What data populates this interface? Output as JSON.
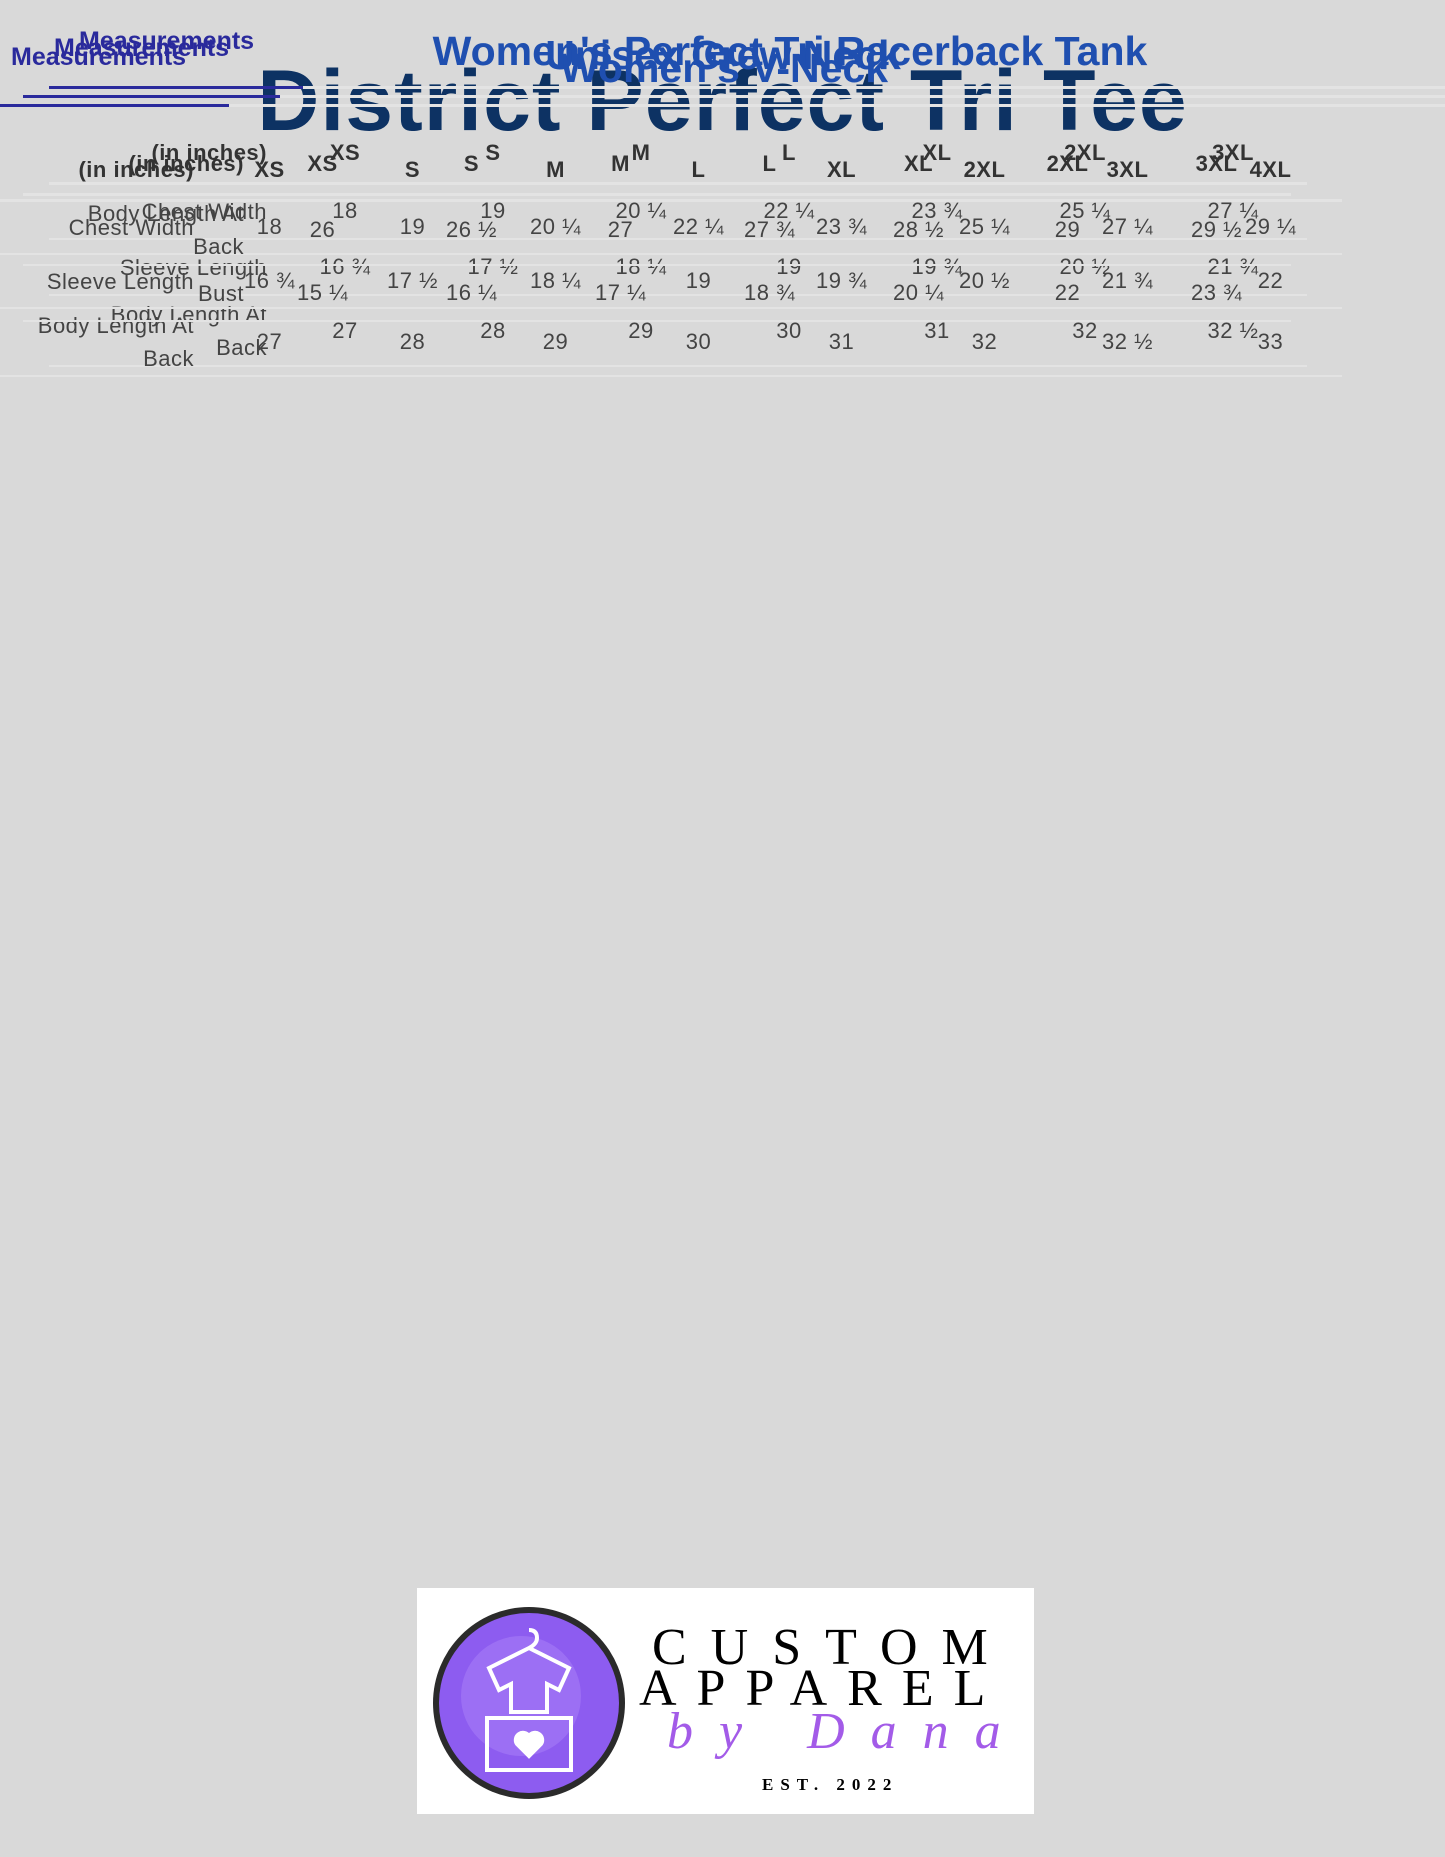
{
  "title": "District Perfect Tri Tee",
  "tables": [
    {
      "tab": "Measurements",
      "title": "Unisex Crew Neck",
      "header": [
        "(in inches)",
        "XS",
        "S",
        "M",
        "L",
        "XL",
        "2XL",
        "3XL"
      ],
      "rows": [
        [
          "Chest Width",
          "18",
          "19",
          "20 ¼",
          "22 ¼",
          "23 ¾",
          "25 ¼",
          "27 ¼"
        ],
        [
          "Sleeve Length",
          "16 ¾",
          "17 ½",
          "18 ¼",
          "19",
          "19 ¾",
          "20 ½",
          "21 ¾"
        ],
        [
          "Body Length At Back",
          "27",
          "28",
          "29",
          "30",
          "31",
          "32",
          "32 ½"
        ]
      ]
    },
    {
      "tab": "Measurements",
      "title": "Women’s V-Neck",
      "header": [
        "(in inches)",
        "XS",
        "S",
        "M",
        "L",
        "XL",
        "2XL",
        "3XL",
        "4XL"
      ],
      "rows": [
        [
          "Chest Width",
          "18",
          "19",
          "20 ¼",
          "22 ¼",
          "23 ¾",
          "25 ¼",
          "27 ¼",
          "29 ¼"
        ],
        [
          "Sleeve Length",
          "16 ¾",
          "17 ½",
          "18 ¼",
          "19",
          "19 ¾",
          "20 ½",
          "21 ¾",
          "22"
        ],
        [
          "Body Length At Back",
          "27",
          "28",
          "29",
          "30",
          "31",
          "32",
          "32 ½",
          "33"
        ]
      ]
    },
    {
      "tab": "Measurements",
      "title": "Women's Perfect Tri Racerback Tank",
      "header": [
        "(in inches)",
        "XS",
        "S",
        "M",
        "L",
        "XL",
        "2XL",
        "3XL"
      ],
      "rows": [
        [
          "Body Length At Back",
          "26",
          "26 ½",
          "27",
          "27 ¾",
          "28 ½",
          "29",
          "29 ½"
        ],
        [
          "Bust",
          "15 ¼",
          "16 ¼",
          "17 ¼",
          "18 ¾",
          "20 ¼",
          "22",
          "23 ¾"
        ]
      ]
    }
  ],
  "logo": {
    "line1": "CUSTOM",
    "line2": "APPAREL",
    "script": "by Dana",
    "est": "EST. 2022"
  }
}
